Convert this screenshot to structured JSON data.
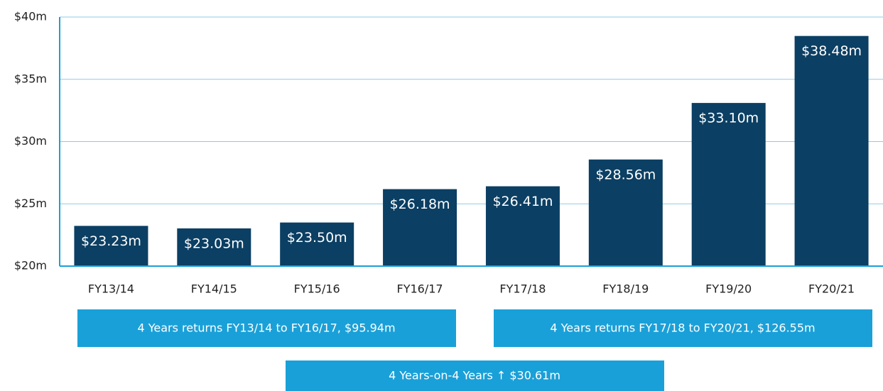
{
  "chart_data": {
    "type": "bar",
    "categories": [
      "FY13/14",
      "FY14/15",
      "FY15/16",
      "FY16/17",
      "FY17/18",
      "FY18/19",
      "FY19/20",
      "FY20/21"
    ],
    "values": [
      23.23,
      23.03,
      23.5,
      26.18,
      26.41,
      28.56,
      33.1,
      38.48
    ],
    "value_labels": [
      "$23.23m",
      "$23.03m",
      "$23.50m",
      "$26.18m",
      "$26.41m",
      "$28.56m",
      "$33.10m",
      "$38.48m"
    ],
    "color": "#0b3f63",
    "ylim": [
      20,
      40
    ],
    "yticks": [
      {
        "value": 20,
        "label": "$20m"
      },
      {
        "value": 25,
        "label": "$25m"
      },
      {
        "value": 30,
        "label": "$30m"
      },
      {
        "value": 35,
        "label": "$35m"
      },
      {
        "value": 40,
        "label": "$40m"
      }
    ],
    "grid": true,
    "annotations": [
      "4 Years returns FY13/14 to FY16/17, $95.94m",
      "4 Years returns FY17/18 to FY20/21, $126.55m",
      "4 Years-on-4 Years  ↑ $30.61m"
    ]
  }
}
